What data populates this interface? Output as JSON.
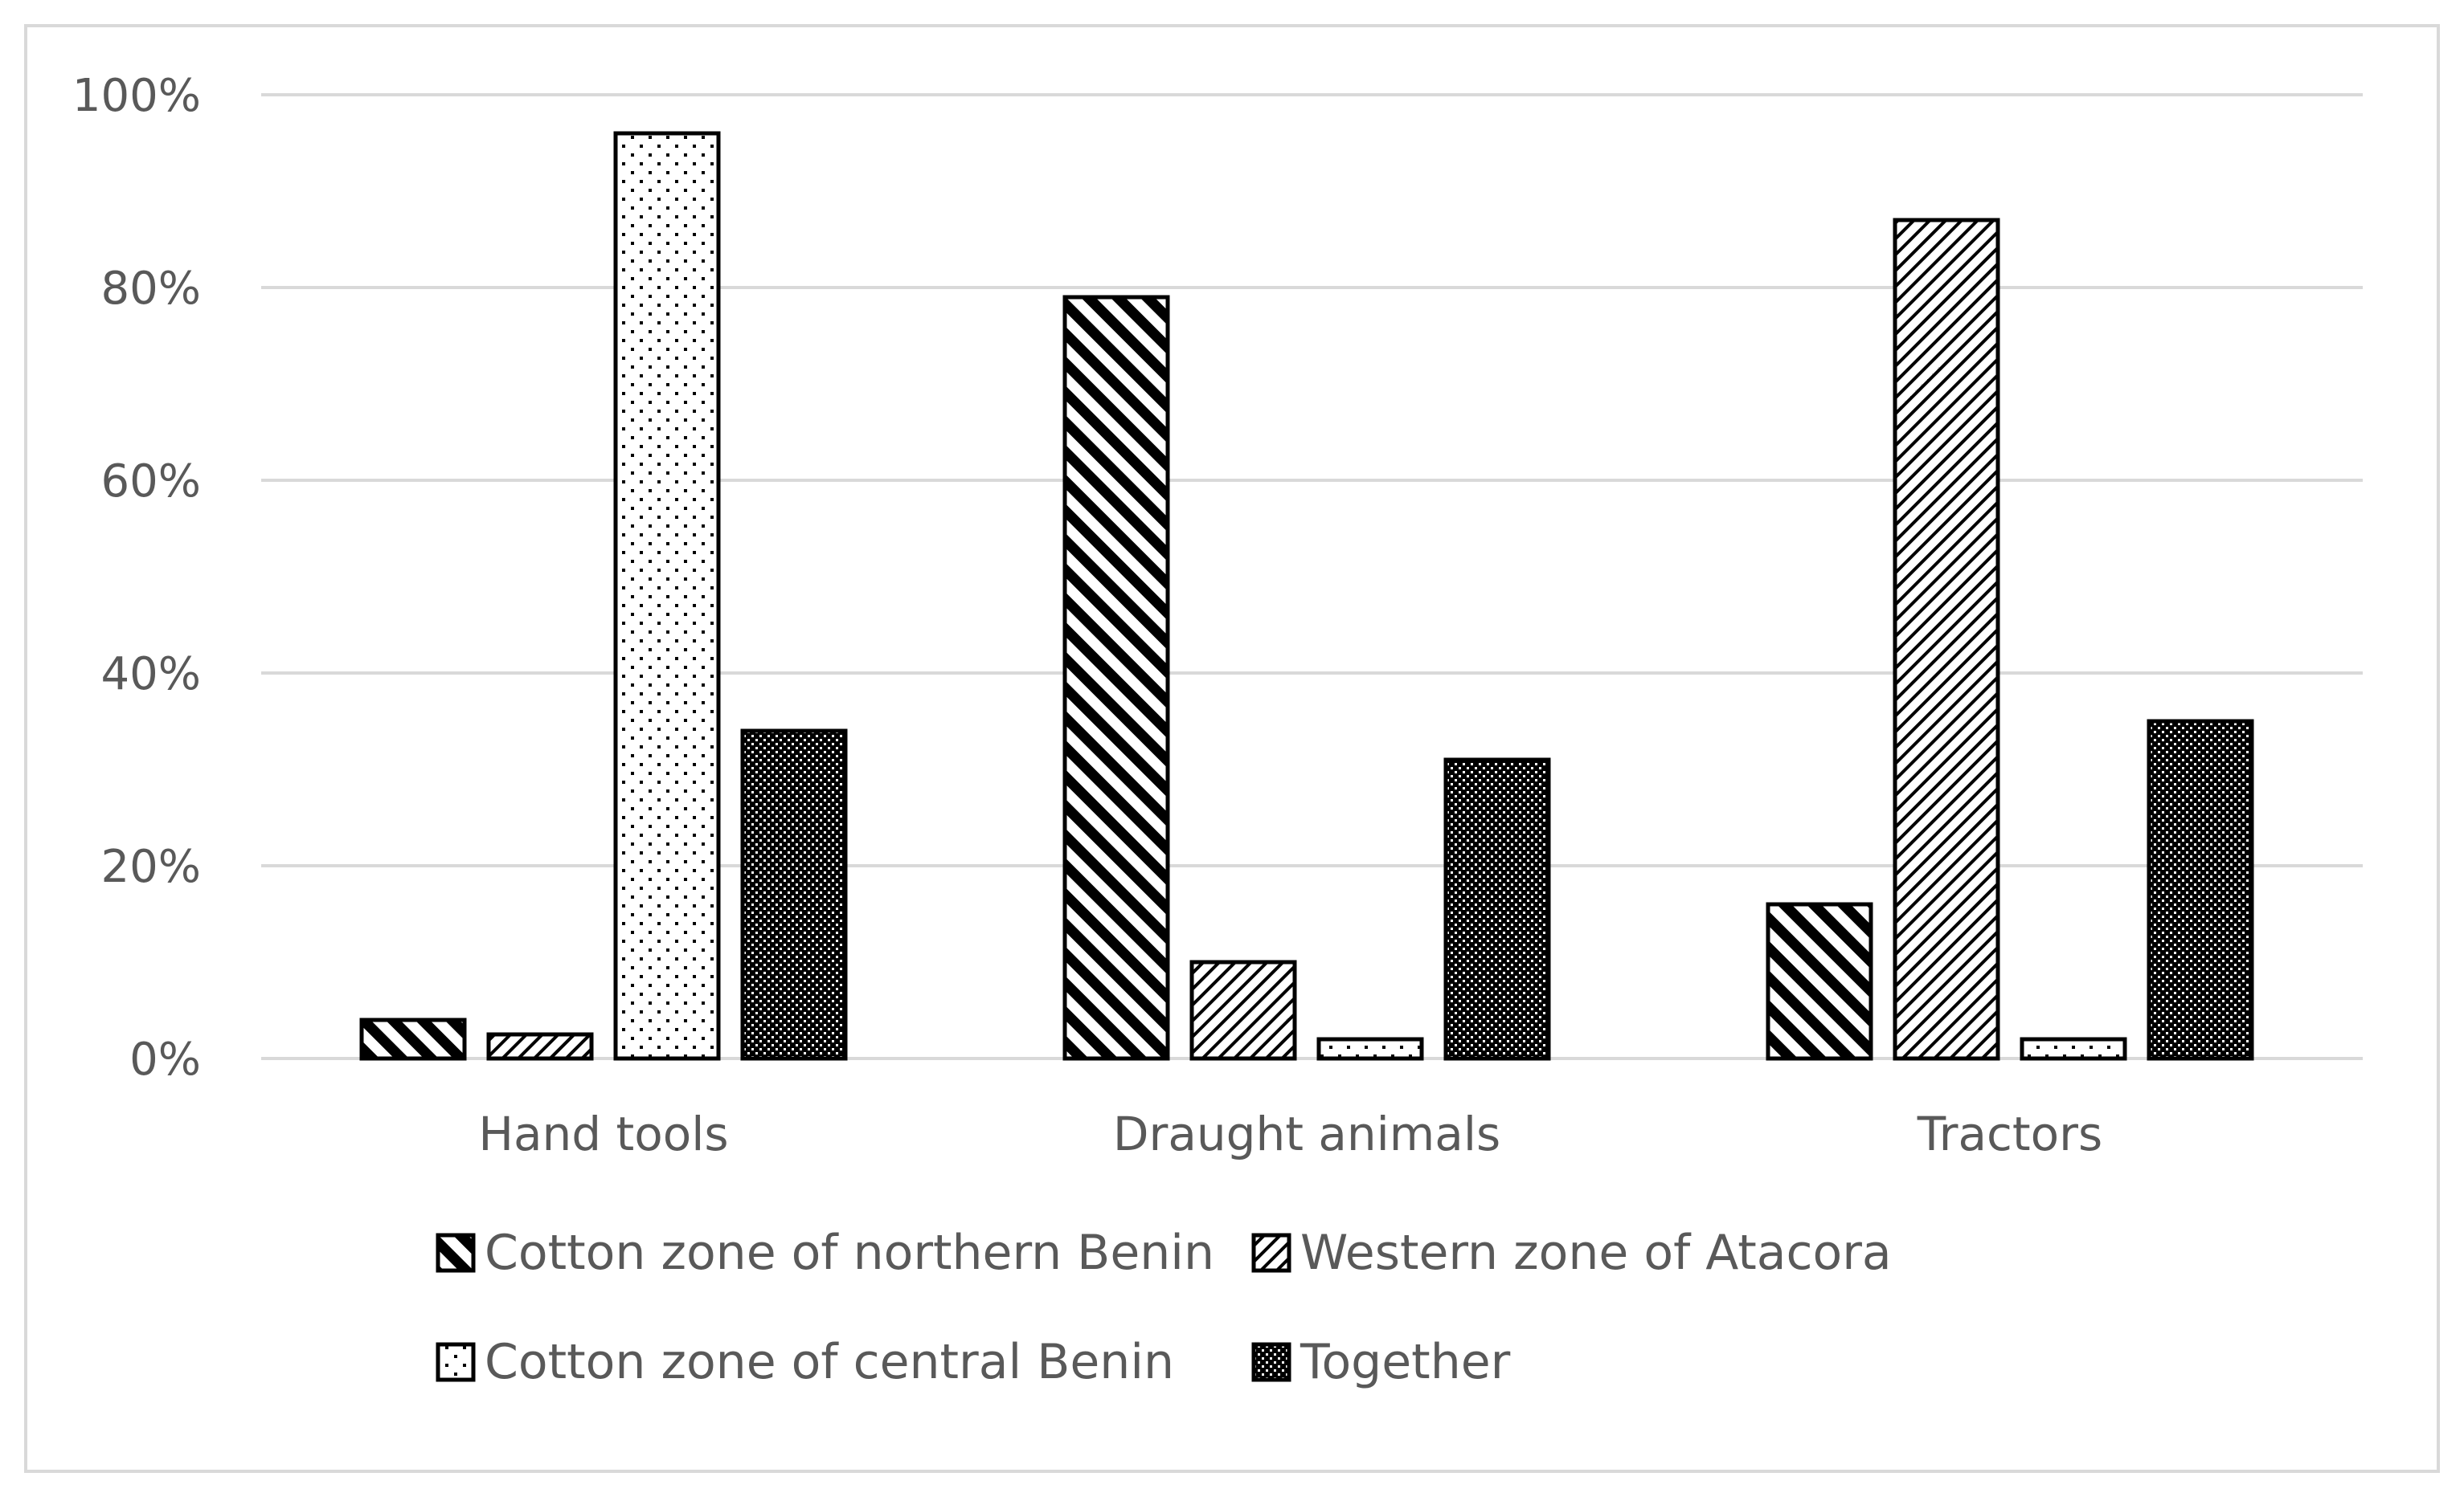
{
  "chart_data": {
    "type": "bar",
    "title": "",
    "xlabel": "",
    "ylabel": "",
    "categories": [
      "Hand tools",
      "Draught animals",
      "Tractors"
    ],
    "y_ticks": [
      "0%",
      "20%",
      "40%",
      "60%",
      "80%",
      "100%"
    ],
    "ylim": [
      0,
      100
    ],
    "grid": true,
    "legend_position": "bottom",
    "series": [
      {
        "name": "Cotton zone of northern Benin",
        "values": [
          4,
          79,
          16
        ],
        "pattern": "diag-bold",
        "color": "#000000"
      },
      {
        "name": "Western zone of Atacora",
        "values": [
          2.5,
          10,
          87
        ],
        "pattern": "diag-fine",
        "color": "#000000"
      },
      {
        "name": "Cotton zone of central Benin",
        "values": [
          96,
          2,
          2
        ],
        "pattern": "dots",
        "color": "#000000"
      },
      {
        "name": "Together",
        "values": [
          34,
          31,
          35
        ],
        "pattern": "checker",
        "color": "#000000"
      }
    ],
    "gridline_color": "#d9d9d9",
    "text_color": "#595959"
  }
}
